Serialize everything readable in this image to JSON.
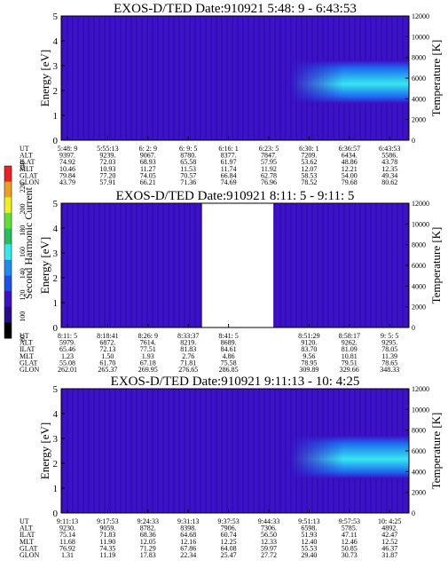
{
  "panels": [
    {
      "title": "EXOS-D/TED   Date:910921  5:48: 9 - 6:43:53",
      "ylabel": "Energy [eV]",
      "ylabel_right": "Temperature [K]",
      "gap": null,
      "columns": [
        [
          "5:48: 9",
          "9397.",
          "74.92",
          "10.46",
          "79.84",
          "43.79"
        ],
        [
          "5:55:13",
          "9239.",
          "72.03",
          "10.93",
          "77.20",
          "57.91"
        ],
        [
          "6: 2: 9",
          "9067.",
          "68.93",
          "11.27",
          "74.05",
          "66.21"
        ],
        [
          "6: 9: 5",
          "8780.",
          "65.58",
          "11.53",
          "70.57",
          "71.36"
        ],
        [
          "6:16: 1",
          "8377.",
          "61.97",
          "11.74",
          "66.84",
          "74.69"
        ],
        [
          "6:23: 5",
          "7847.",
          "57.95",
          "11.92",
          "62.78",
          "76.96"
        ],
        [
          "6:30: 1",
          "7209.",
          "53.62",
          "12.07",
          "58.53",
          "78.52"
        ],
        [
          "6:36:57",
          "6434.",
          "48.86",
          "12.21",
          "54.00",
          "79.68"
        ],
        [
          "6:43:53",
          "5586.",
          "43.78",
          "12.35",
          "49.34",
          "80.62"
        ]
      ]
    },
    {
      "title": "EXOS-D/TED   Date:910921  8:11: 5 - 9:11: 5",
      "ylabel": "Energy [eV]",
      "ylabel_right": "Temperature [K]",
      "gap": [
        0.405,
        0.61
      ],
      "columns": [
        [
          "8:11: 5",
          "5979.",
          "65.46",
          "1.23",
          "55.08",
          "262.01"
        ],
        [
          "8:18:41",
          "6872.",
          "72.13",
          "1.50",
          "61.70",
          "265.37"
        ],
        [
          "8:26: 9",
          "7614.",
          "77.51",
          "1.93",
          "67.18",
          "269.95"
        ],
        [
          "8:33:37",
          "8219.",
          "81.83",
          "2.76",
          "71.81",
          "276.65"
        ],
        [
          "8:41: 5",
          "8689.",
          "84.61",
          "4.86",
          "75.58",
          "286.85"
        ],
        [
          "",
          "",
          "",
          "",
          "",
          ""
        ],
        [
          "8:51:29",
          "9120.",
          "83.70",
          "9.56",
          "78.95",
          "309.89"
        ],
        [
          "8:58:17",
          "9262.",
          "81.09",
          "10.81",
          "79.51",
          "329.66"
        ],
        [
          "9: 5: 5",
          "9295.",
          "78.05",
          "11.39",
          "78.65",
          "348.33"
        ]
      ]
    },
    {
      "title": "EXOS-D/TED   Date:910921  9:11:13 - 10: 4:25",
      "ylabel": "Energy [eV]",
      "ylabel_right": "Temperature [K]",
      "gap": null,
      "columns": [
        [
          "9:11:13",
          "9230.",
          "75.14",
          "11.68",
          "76.92",
          "1.31"
        ],
        [
          "9:17:53",
          "9059.",
          "71.83",
          "11.90",
          "74.35",
          "11.19"
        ],
        [
          "9:24:33",
          "8782.",
          "68.36",
          "12.05",
          "71.29",
          "17.83"
        ],
        [
          "9:31:13",
          "8398.",
          "64.68",
          "12.16",
          "67.86",
          "22.34"
        ],
        [
          "9:37:53",
          "7906.",
          "60.74",
          "12.25",
          "64.08",
          "25.47"
        ],
        [
          "9:44:33",
          "7306.",
          "56.50",
          "12.33",
          "59.97",
          "27.72"
        ],
        [
          "9:51:13",
          "6598.",
          "51.93",
          "12.40",
          "55.53",
          "29.40"
        ],
        [
          "9:57:53",
          "5785.",
          "47.11",
          "12.46",
          "50.85",
          "30.73"
        ],
        [
          "10: 4:25",
          "4892.",
          "42.47",
          "12.52",
          "46.37",
          "31.87"
        ]
      ]
    }
  ],
  "row_labels": [
    "UT",
    "ALT",
    "ILAT",
    "MLT",
    "GLAT",
    "GLON"
  ],
  "energy_ticks": [
    "0",
    "1",
    "2",
    "3",
    "4",
    "5"
  ],
  "temperature_ticks": [
    "0",
    "2000",
    "4000",
    "6000",
    "8000",
    "10000",
    "12000"
  ],
  "colorbar": {
    "label": "Second Harmonic Current",
    "ticks": [
      "80",
      "100",
      "120",
      "140",
      "160",
      "180",
      "200",
      "220",
      "240"
    ]
  },
  "chart_data": [
    {
      "type": "heatmap",
      "title": "EXOS-D/TED   Date:910921  5:48: 9 - 6:43:53",
      "ylabel": "Energy [eV]",
      "ylim": [
        0,
        5
      ],
      "ylabel_right": "Temperature [K]",
      "ylim_right": [
        0,
        12000
      ],
      "x": [
        "5:48: 9",
        "5:55:13",
        "6: 2: 9",
        "6: 9: 5",
        "6:16: 1",
        "6:23: 5",
        "6:30: 1",
        "6:36:57",
        "6:43:53"
      ],
      "zlim": [
        80,
        240
      ],
      "features": [
        {
          "kind": "band",
          "x_range": [
            "6:30: 1",
            "6:43:53"
          ],
          "energy_range": [
            1.5,
            3.2
          ],
          "peak_energy": 2.2
        }
      ]
    },
    {
      "type": "heatmap",
      "title": "EXOS-D/TED   Date:910921  8:11: 5 - 9:11: 5",
      "ylabel": "Energy [eV]",
      "ylim": [
        0,
        5
      ],
      "ylabel_right": "Temperature [K]",
      "ylim_right": [
        0,
        12000
      ],
      "x": [
        "8:11: 5",
        "8:18:41",
        "8:26: 9",
        "8:33:37",
        "8:41: 5",
        "8:51:29",
        "8:58:17",
        "9: 5: 5"
      ],
      "zlim": [
        80,
        240
      ],
      "gap": [
        "8:41: 5",
        "8:51:29"
      ]
    },
    {
      "type": "heatmap",
      "title": "EXOS-D/TED   Date:910921  9:11:13 - 10: 4:25",
      "ylabel": "Energy [eV]",
      "ylim": [
        0,
        5
      ],
      "ylabel_right": "Temperature [K]",
      "ylim_right": [
        0,
        12000
      ],
      "x": [
        "9:11:13",
        "9:17:53",
        "9:24:33",
        "9:31:13",
        "9:37:53",
        "9:44:33",
        "9:51:13",
        "9:57:53",
        "10: 4:25"
      ],
      "zlim": [
        80,
        240
      ],
      "features": [
        {
          "kind": "band",
          "x_range": [
            "9:51:13",
            "10: 4:25"
          ],
          "energy_range": [
            1.4,
            3.1
          ],
          "peak_energy": 2.2
        }
      ]
    }
  ],
  "colors": {
    "background": "#3b12c8",
    "low": "#2a0a8c",
    "band_mid": "#1d6cf0",
    "band_high": "#36e6f0",
    "gap": "#ffffff"
  }
}
